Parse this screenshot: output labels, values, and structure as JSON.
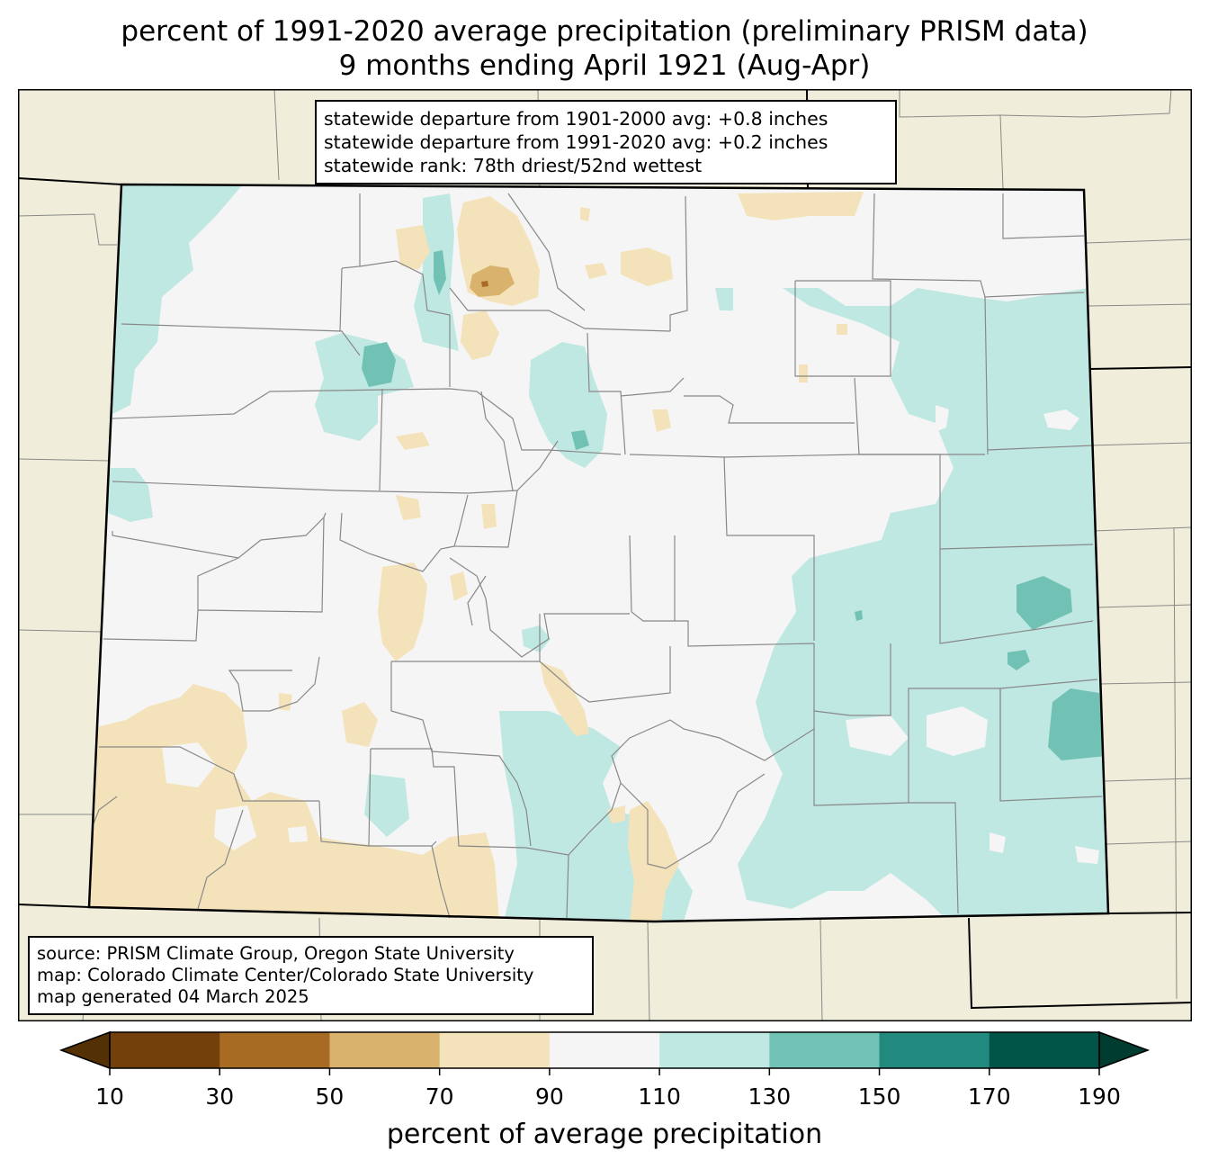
{
  "title": {
    "line1": "percent of 1991-2020 average precipitation (preliminary PRISM data)",
    "line2": "9 months ending April 1921 (Aug-Apr)"
  },
  "stats": {
    "line1": "statewide departure from 1901-2000 avg: +0.8 inches",
    "line2": "statewide departure from 1991-2020 avg: +0.2 inches",
    "line3": "statewide rank: 78th driest/52nd wettest"
  },
  "source": {
    "line1": "source: PRISM Climate Group, Oregon State University",
    "line2": "map: Colorado Climate Center/Colorado State University",
    "line3": "map generated 04 March 2025"
  },
  "colorbar": {
    "label": "percent of average precipitation",
    "ticks": [
      "10",
      "30",
      "50",
      "70",
      "90",
      "110",
      "130",
      "150",
      "170",
      "190"
    ],
    "colors": [
      "#733f0b",
      "#a86b23",
      "#d9b36d",
      "#f4e3ba",
      "#f4f5f4",
      "#c0e8e2",
      "#71c2b5",
      "#21897d",
      "#005448"
    ],
    "under_color": "#543005",
    "over_color": "#003c30"
  },
  "map_colors": {
    "outside": "#f0eedb",
    "normal": "#f4f5f4",
    "dry": "#f4e3ba",
    "drier": "#d9b36d",
    "driest": "#a86b23",
    "wet": "#c0e8e2",
    "wetter": "#71c2b5"
  }
}
